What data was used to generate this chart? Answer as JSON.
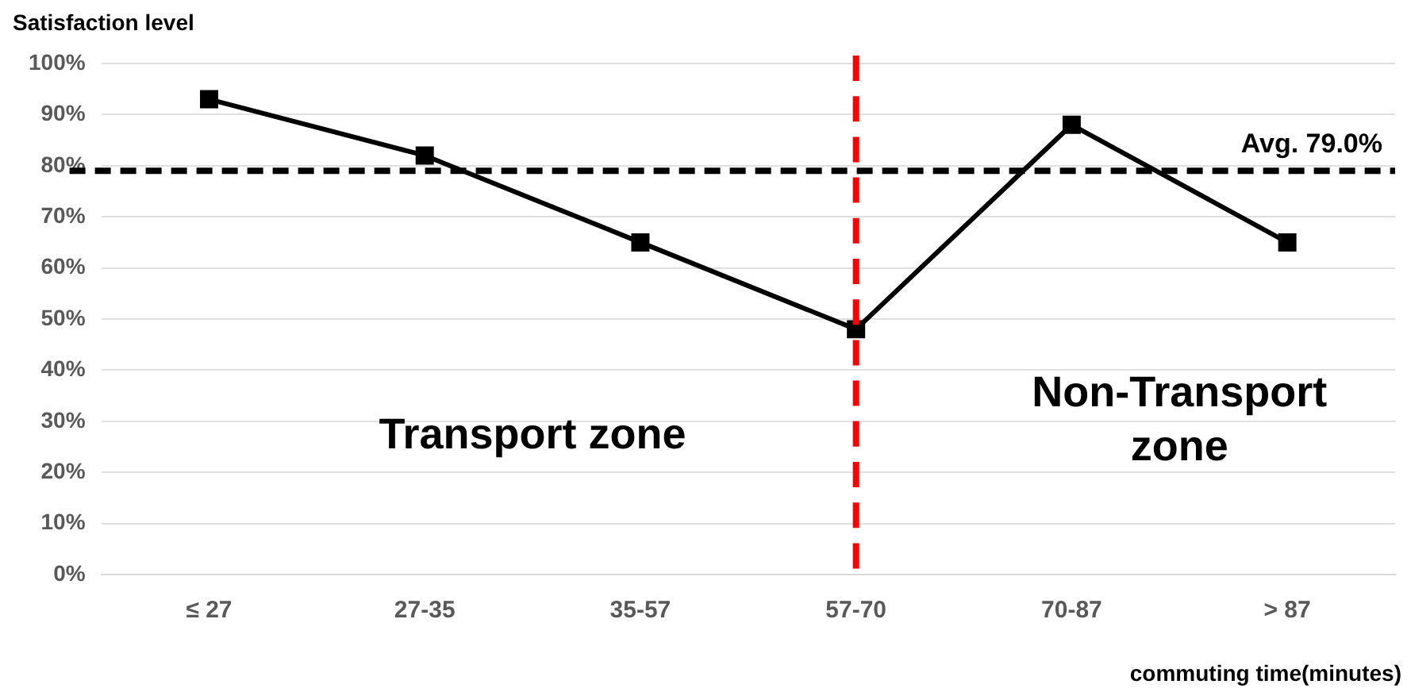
{
  "chart_data": {
    "type": "line",
    "ylabel": "Satisfaction level",
    "xlabel": "commuting time(minutes)",
    "categories": [
      "≤ 27",
      "27-35",
      "35-57",
      "57-70",
      "70-87",
      "> 87"
    ],
    "series": [
      {
        "color": "#000000",
        "values": [
          93,
          82,
          65,
          48,
          88,
          65
        ]
      }
    ],
    "ylim": [
      0,
      100
    ],
    "yticks": [
      {
        "value": 0,
        "label": "0%"
      },
      {
        "value": 10,
        "label": "10%"
      },
      {
        "value": 20,
        "label": "20%"
      },
      {
        "value": 30,
        "label": "30%"
      },
      {
        "value": 40,
        "label": "40%"
      },
      {
        "value": 50,
        "label": "50%"
      },
      {
        "value": 60,
        "label": "60%"
      },
      {
        "value": 70,
        "label": "70%"
      },
      {
        "value": 80,
        "label": "80%"
      },
      {
        "value": 90,
        "label": "90%"
      },
      {
        "value": 100,
        "label": "100%"
      }
    ],
    "grid": "y",
    "legend": false,
    "marker": "square",
    "line_style": "solid",
    "ref_lines": [
      {
        "axis": "y",
        "value": 79,
        "label": "Avg. 79.0%",
        "color": "#000000",
        "line_style": "dashed"
      },
      {
        "axis": "x",
        "value": "57-70",
        "color": "#ff0000",
        "line_style": "dashed"
      }
    ],
    "annotations": [
      "Transport zone",
      "Non-Transport zone"
    ]
  }
}
